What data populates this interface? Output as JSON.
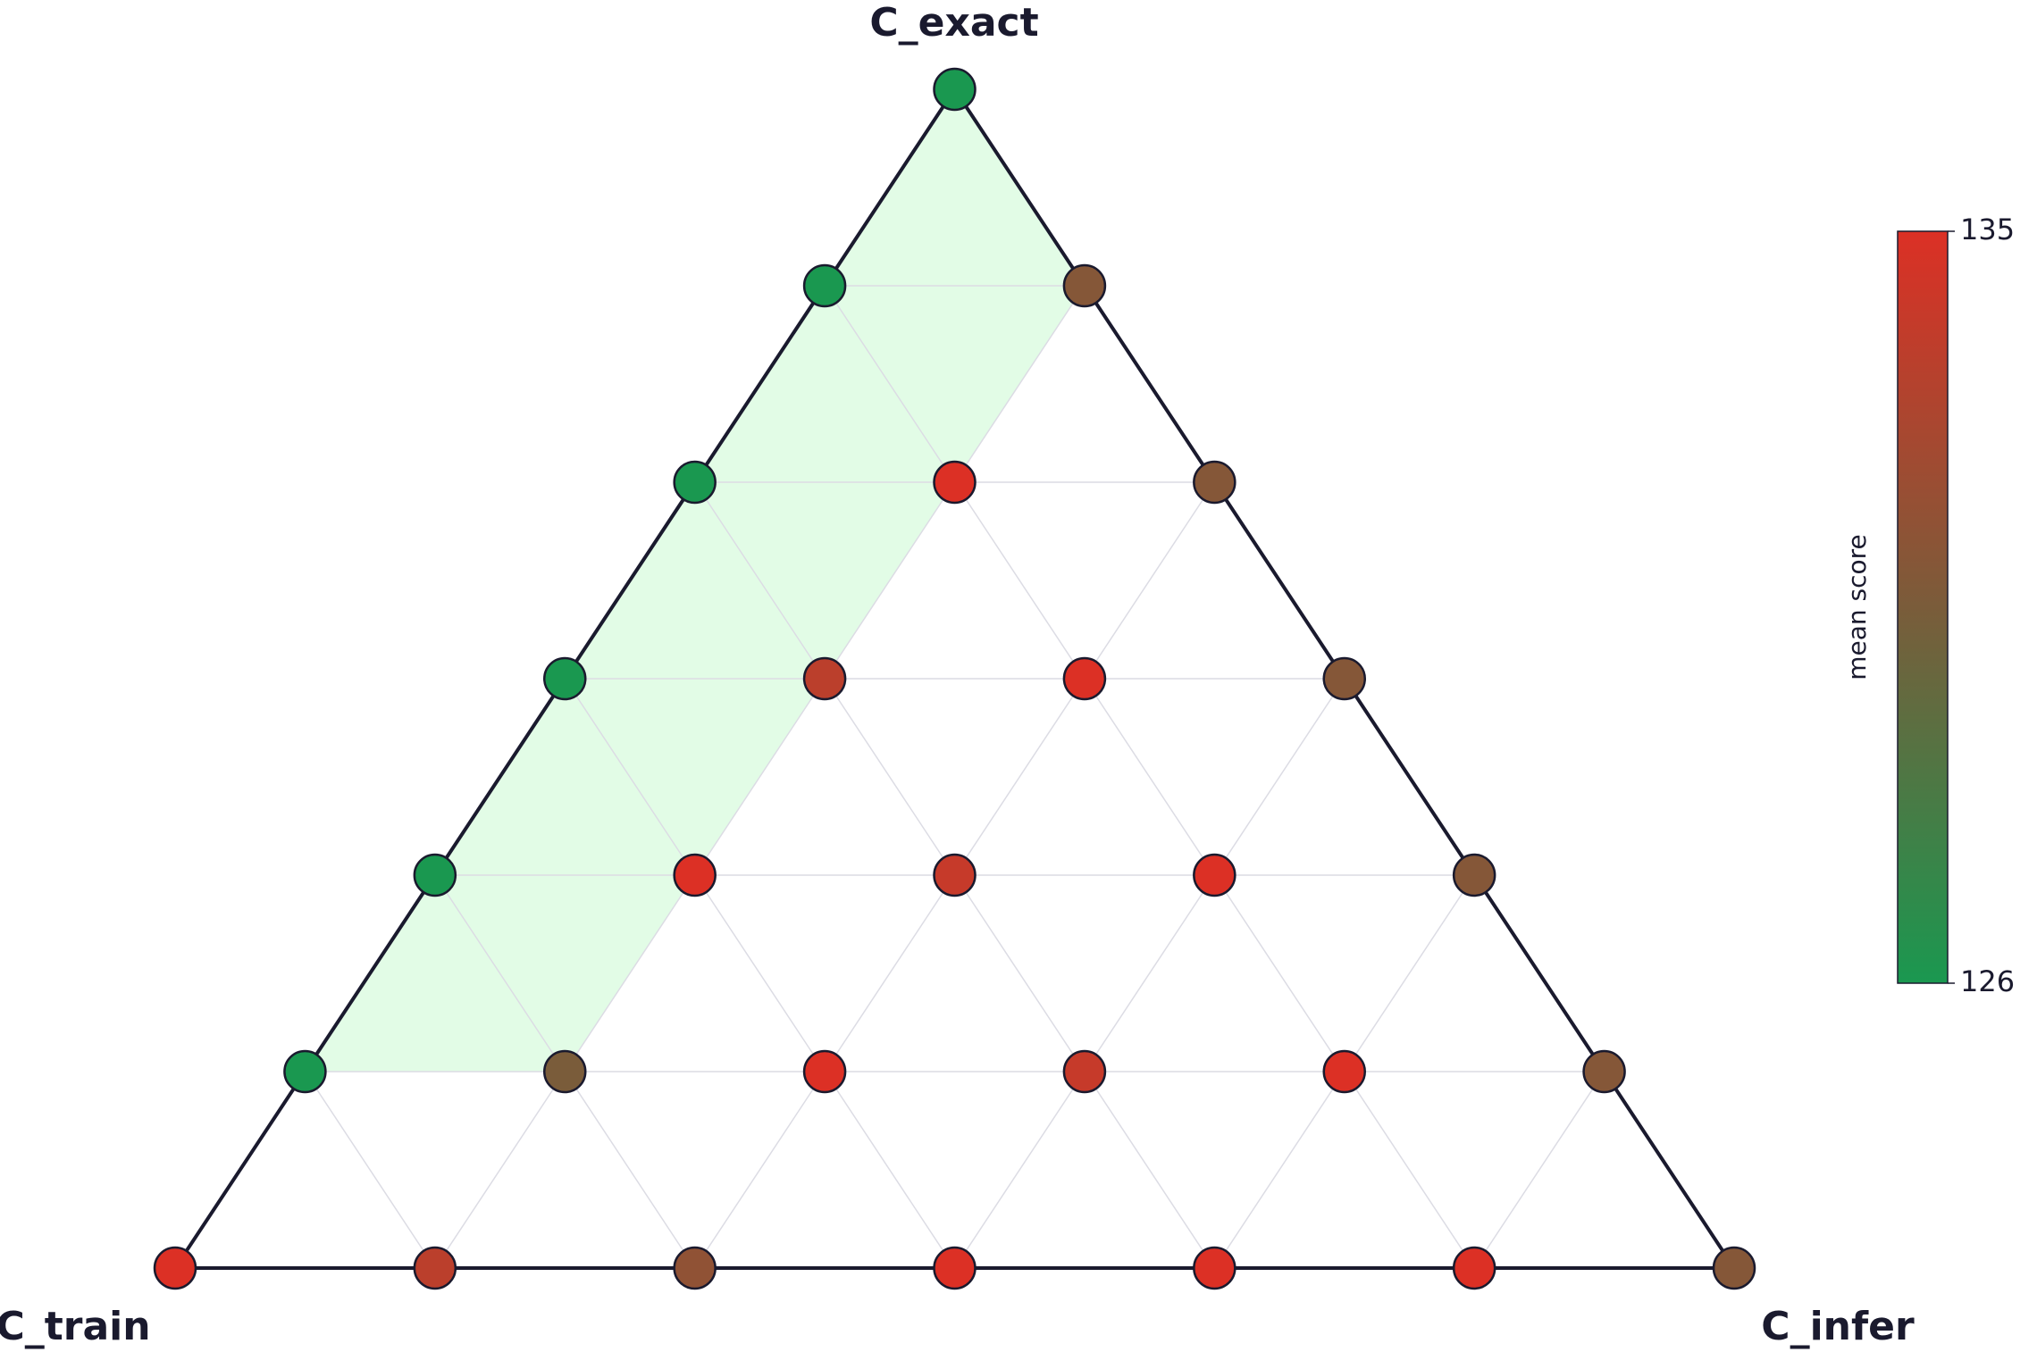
{
  "chart_data": {
    "type": "ternary",
    "axis_labels": {
      "top": "C_exact",
      "left": "C_train",
      "right": "C_infer"
    },
    "divisions": 6,
    "points": [
      {
        "exact": 6,
        "train": 0,
        "infer": 0,
        "value": 126
      },
      {
        "exact": 5,
        "train": 1,
        "infer": 0,
        "value": 126
      },
      {
        "exact": 5,
        "train": 0,
        "infer": 1,
        "value": 131
      },
      {
        "exact": 4,
        "train": 2,
        "infer": 0,
        "value": 126
      },
      {
        "exact": 4,
        "train": 1,
        "infer": 1,
        "value": 135
      },
      {
        "exact": 4,
        "train": 0,
        "infer": 2,
        "value": 131
      },
      {
        "exact": 3,
        "train": 3,
        "infer": 0,
        "value": 126
      },
      {
        "exact": 3,
        "train": 2,
        "infer": 1,
        "value": 133.5
      },
      {
        "exact": 3,
        "train": 1,
        "infer": 2,
        "value": 135
      },
      {
        "exact": 3,
        "train": 0,
        "infer": 3,
        "value": 131
      },
      {
        "exact": 2,
        "train": 4,
        "infer": 0,
        "value": 126
      },
      {
        "exact": 2,
        "train": 3,
        "infer": 1,
        "value": 135
      },
      {
        "exact": 2,
        "train": 2,
        "infer": 2,
        "value": 134
      },
      {
        "exact": 2,
        "train": 1,
        "infer": 3,
        "value": 135
      },
      {
        "exact": 2,
        "train": 0,
        "infer": 4,
        "value": 131
      },
      {
        "exact": 1,
        "train": 5,
        "infer": 0,
        "value": 126
      },
      {
        "exact": 1,
        "train": 4,
        "infer": 1,
        "value": 130.5
      },
      {
        "exact": 1,
        "train": 3,
        "infer": 2,
        "value": 135
      },
      {
        "exact": 1,
        "train": 2,
        "infer": 3,
        "value": 134
      },
      {
        "exact": 1,
        "train": 1,
        "infer": 4,
        "value": 135
      },
      {
        "exact": 1,
        "train": 0,
        "infer": 5,
        "value": 131
      },
      {
        "exact": 0,
        "train": 6,
        "infer": 0,
        "value": 135
      },
      {
        "exact": 0,
        "train": 5,
        "infer": 1,
        "value": 133.5
      },
      {
        "exact": 0,
        "train": 4,
        "infer": 2,
        "value": 131.5
      },
      {
        "exact": 0,
        "train": 3,
        "infer": 3,
        "value": 135
      },
      {
        "exact": 0,
        "train": 2,
        "infer": 4,
        "value": 135
      },
      {
        "exact": 0,
        "train": 1,
        "infer": 5,
        "value": 135
      },
      {
        "exact": 0,
        "train": 0,
        "infer": 6,
        "value": 131
      }
    ],
    "colorbar": {
      "label": "mean score",
      "clim": [
        126,
        135
      ],
      "ticks": [
        126,
        135
      ],
      "colors": [
        "#1a9850",
        "#7a5c3a",
        "#dc3025"
      ]
    },
    "highlight_color": "#e2fce6"
  }
}
